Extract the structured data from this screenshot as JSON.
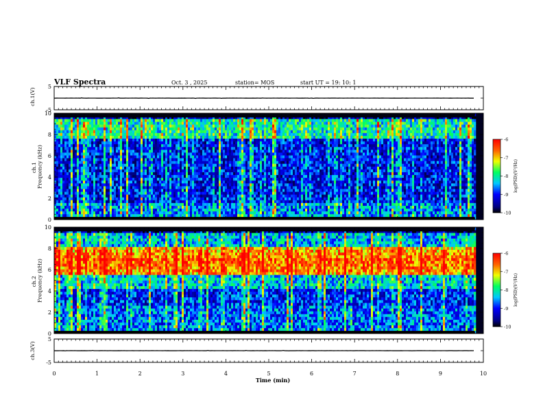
{
  "header": {
    "title": "VLF Spectra",
    "date": "Oct. 3 , 2025",
    "station": "station= MOS",
    "start_ut": "start UT = 19: 10: 1"
  },
  "colorbar": {
    "ticks": [
      "-6",
      "-7",
      "-8",
      "-9",
      "-10"
    ],
    "label": "log(PSD)(V²/Hz)",
    "range": [
      -10,
      -6
    ]
  },
  "chart_data": [
    {
      "type": "line",
      "panel": "ch1-waveform",
      "title": "VLF Spectra",
      "ylabel": "ch.1(V)",
      "ylim": [
        -5,
        5
      ],
      "y_tick_labels": [
        "5",
        "-5"
      ],
      "x_range_min": [
        0,
        10
      ],
      "series": [
        {
          "name": "ch.1",
          "description_level_volts": 0
        }
      ]
    },
    {
      "type": "heatmap",
      "panel": "ch1-spectrogram",
      "ylabel": "ch.1 Frequency (kHz)",
      "ylim": [
        0,
        10
      ],
      "y_tick_labels": [
        "0",
        "2",
        "4",
        "6",
        "8",
        "10"
      ],
      "x_range_min": [
        0,
        10
      ],
      "data_end_min": 9.8,
      "colorscale": "log(PSD)(V²/Hz)",
      "zlim": [
        -10,
        -6
      ],
      "dominant_bands_khz": [
        [
          7.5,
          9.5
        ],
        [
          0.3,
          1.5
        ]
      ],
      "typical_level": -9
    },
    {
      "type": "heatmap",
      "panel": "ch2-spectrogram",
      "ylabel": "ch.2 Frequency (kHz)",
      "ylim": [
        0,
        10
      ],
      "y_tick_labels": [
        "0",
        "2",
        "4",
        "6",
        "8",
        "10"
      ],
      "x_range_min": [
        0,
        10
      ],
      "data_end_min": 9.8,
      "colorscale": "log(PSD)(V²/Hz)",
      "zlim": [
        -10,
        -6
      ],
      "dominant_bands_khz": [
        [
          5.5,
          8.0
        ]
      ],
      "typical_level": -7
    },
    {
      "type": "line",
      "panel": "ch3-waveform",
      "ylabel": "ch.3(V)",
      "ylim": [
        -5,
        5
      ],
      "y_tick_labels": [
        "5",
        "-5"
      ],
      "xlabel": "Time (min)",
      "x_tick_labels": [
        "0",
        "1",
        "2",
        "3",
        "4",
        "5",
        "6",
        "7",
        "8",
        "9",
        "10"
      ],
      "x_range_min": [
        0,
        10
      ],
      "series": [
        {
          "name": "ch.3",
          "description_level_volts": 0
        }
      ]
    }
  ]
}
